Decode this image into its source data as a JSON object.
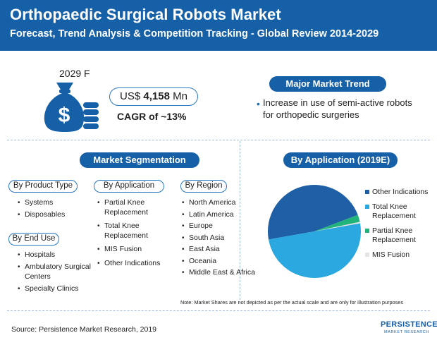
{
  "header": {
    "title": "Orthopaedic Surgical Robots Market",
    "subtitle": "Forecast, Trend Analysis & Competition Tracking - Global Review 2014-2029"
  },
  "forecast": {
    "year": "2029 F",
    "value_prefix": "US$ ",
    "value": "4,158",
    "value_unit": " Mn",
    "cagr": "CAGR of ~13%"
  },
  "trend": {
    "title": "Major Market Trend",
    "bullet": "Increase in use of semi-active robots for orthopedic surgeries"
  },
  "segmentation": {
    "title": "Market Segmentation",
    "product_type": {
      "label": "By Product Type",
      "items": [
        "Systems",
        "Disposables"
      ]
    },
    "application": {
      "label": "By Application",
      "items": [
        "Partial Knee Replacement",
        "Total Knee Replacement",
        "MIS Fusion",
        "Other Indications"
      ]
    },
    "region": {
      "label": "By Region",
      "items": [
        "North America",
        "Latin America",
        "Europe",
        "South Asia",
        "East Asia",
        "Oceania",
        "Middle East & Africa"
      ]
    },
    "end_use": {
      "label": "By End Use",
      "items": [
        "Hospitals",
        "Ambulatory Surgical Centers",
        "Specialty Clinics"
      ]
    }
  },
  "by_application": {
    "title": "By Application (2019E)"
  },
  "chart_data": {
    "type": "pie",
    "title": "By Application (2019E)",
    "categories": [
      "Other Indications",
      "Total Knee Replacement",
      "Partial Knee Replacement",
      "MIS Fusion"
    ],
    "values": [
      47.0,
      50.0,
      2.5,
      0.5
    ],
    "colors": [
      "#1f5fa6",
      "#2aa8df",
      "#22b37a",
      "#e4e4e4"
    ],
    "legend_position": "right"
  },
  "note": "Note: Market Shares are not depicted as per the actual scale and are only for illustration purposes",
  "source": "Source: Persistence Market Research, 2019",
  "logo": {
    "line1": "PERSISTENCE",
    "line2": "MARKET RESEARCH"
  },
  "colors": {
    "brand": "#1660a8",
    "accent": "#2aa8df"
  }
}
